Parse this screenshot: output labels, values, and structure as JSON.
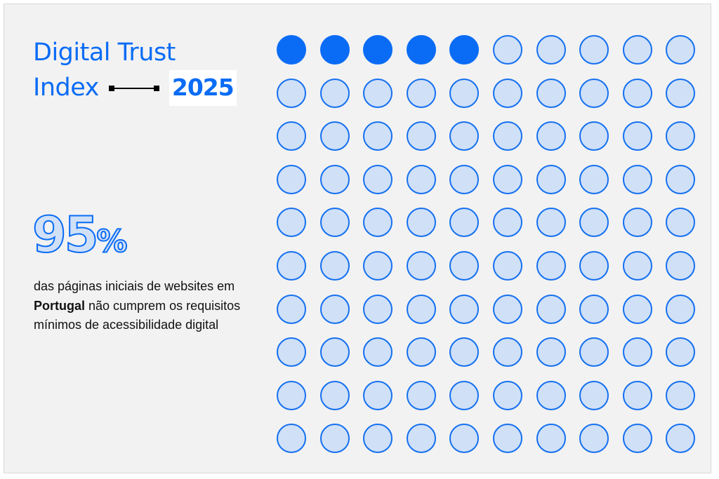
{
  "header": {
    "title_line1": "Digital Trust",
    "title_line2": "Index",
    "year": "2025"
  },
  "stat": {
    "number": "95",
    "unit": "%"
  },
  "description": {
    "part1": "das páginas iniciais de websites em ",
    "highlight": "Portugal",
    "part2": " não cumprem os requisitos mínimos de acessibilidade digital"
  },
  "dot_grid": {
    "total": 100,
    "filled": 5,
    "columns": 10,
    "colors": {
      "filled": "#0a6cf5",
      "empty_fill": "#cfe0f7",
      "empty_stroke": "#1570f0"
    }
  },
  "colors": {
    "accent": "#0a6cf5",
    "background": "#f2f2f2",
    "text": "#111111"
  }
}
